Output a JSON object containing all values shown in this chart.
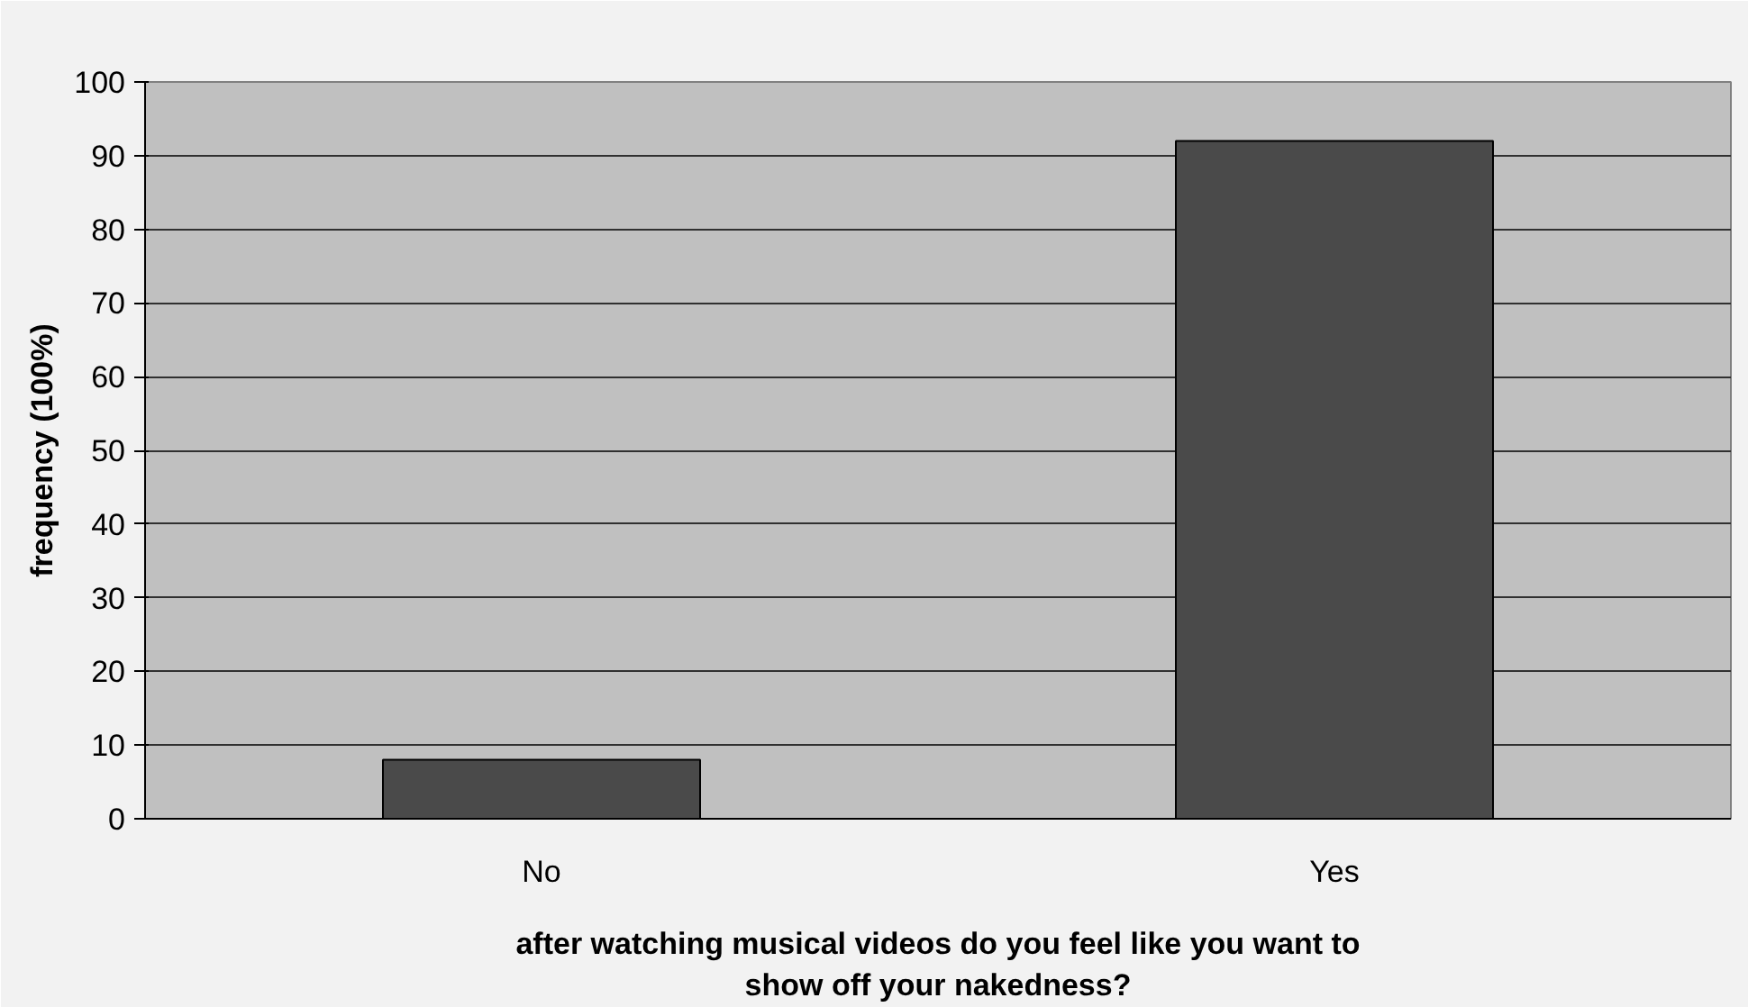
{
  "chart_data": {
    "type": "bar",
    "xlabel": "after watching musical videos do you feel like you want to\nshow off your nakedness?",
    "ylabel": "frequency (100%)",
    "categories": [
      "No",
      "Yes"
    ],
    "values": [
      8,
      92
    ],
    "color": "#4a4a4a",
    "ylim": [
      0,
      100
    ],
    "yticks": [
      0,
      10,
      20,
      30,
      40,
      50,
      60,
      70,
      80,
      90,
      100
    ],
    "grid": "y"
  }
}
